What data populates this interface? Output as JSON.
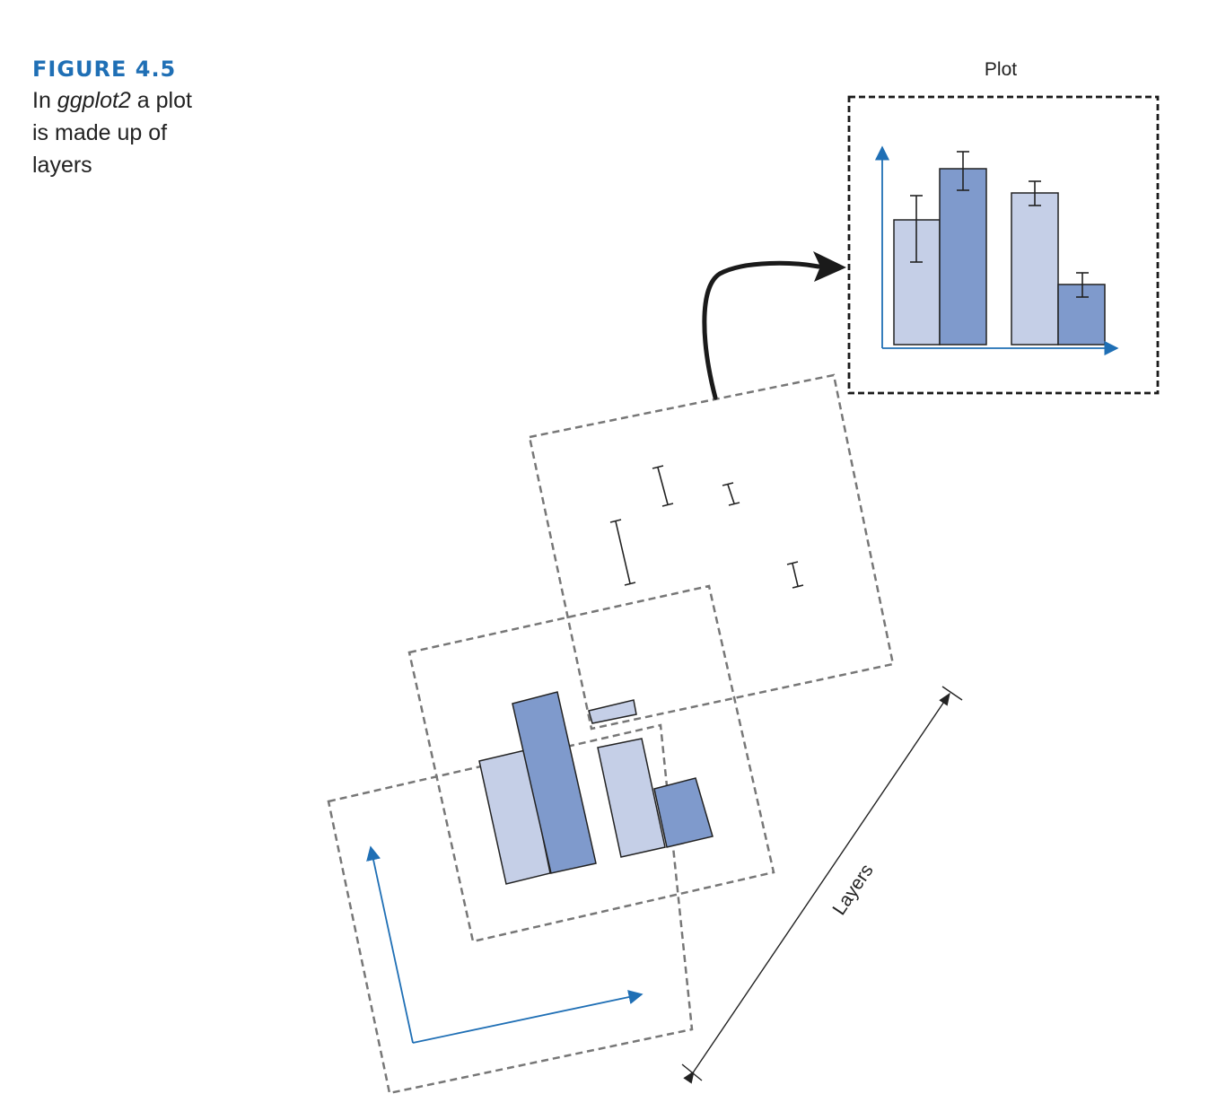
{
  "caption": {
    "figure_label": "FIGURE 4.5",
    "line1_prefix": "In ",
    "line1_italic": "ggplot2",
    "line1_suffix": " a plot",
    "line2": "is made up of",
    "line3": "layers"
  },
  "diagram": {
    "plot_label": "Plot",
    "layers_label": "Layers"
  },
  "colors": {
    "light_bar": "#c5cfe7",
    "dark_bar": "#7f9acc",
    "axis": "#1f6fb5",
    "dash": "#777777",
    "ink": "#222222"
  }
}
